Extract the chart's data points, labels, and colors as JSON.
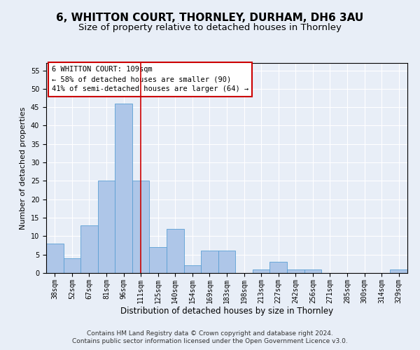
{
  "title1": "6, WHITTON COURT, THORNLEY, DURHAM, DH6 3AU",
  "title2": "Size of property relative to detached houses in Thornley",
  "xlabel": "Distribution of detached houses by size in Thornley",
  "ylabel": "Number of detached properties",
  "footer1": "Contains HM Land Registry data © Crown copyright and database right 2024.",
  "footer2": "Contains public sector information licensed under the Open Government Licence v3.0.",
  "categories": [
    "38sqm",
    "52sqm",
    "67sqm",
    "81sqm",
    "96sqm",
    "111sqm",
    "125sqm",
    "140sqm",
    "154sqm",
    "169sqm",
    "183sqm",
    "198sqm",
    "213sqm",
    "227sqm",
    "242sqm",
    "256sqm",
    "271sqm",
    "285sqm",
    "300sqm",
    "314sqm",
    "329sqm"
  ],
  "values": [
    8,
    4,
    13,
    25,
    46,
    25,
    7,
    12,
    2,
    6,
    6,
    0,
    1,
    3,
    1,
    1,
    0,
    0,
    0,
    0,
    1
  ],
  "bar_color": "#aec6e8",
  "bar_edge_color": "#5a9fd4",
  "vline_index": 5,
  "vline_color": "#cc0000",
  "ylim": [
    0,
    57
  ],
  "yticks": [
    0,
    5,
    10,
    15,
    20,
    25,
    30,
    35,
    40,
    45,
    50,
    55
  ],
  "annotation_title": "6 WHITTON COURT: 109sqm",
  "annotation_line1": "← 58% of detached houses are smaller (90)",
  "annotation_line2": "41% of semi-detached houses are larger (64) →",
  "annotation_box_color": "#ffffff",
  "annotation_box_edge": "#cc0000",
  "bg_color": "#e8eef7",
  "plot_bg_color": "#e8eef7",
  "grid_color": "#ffffff",
  "title1_fontsize": 11,
  "title2_fontsize": 9.5,
  "xlabel_fontsize": 8.5,
  "ylabel_fontsize": 8,
  "tick_fontsize": 7,
  "annotation_fontsize": 7.5,
  "footer_fontsize": 6.5
}
